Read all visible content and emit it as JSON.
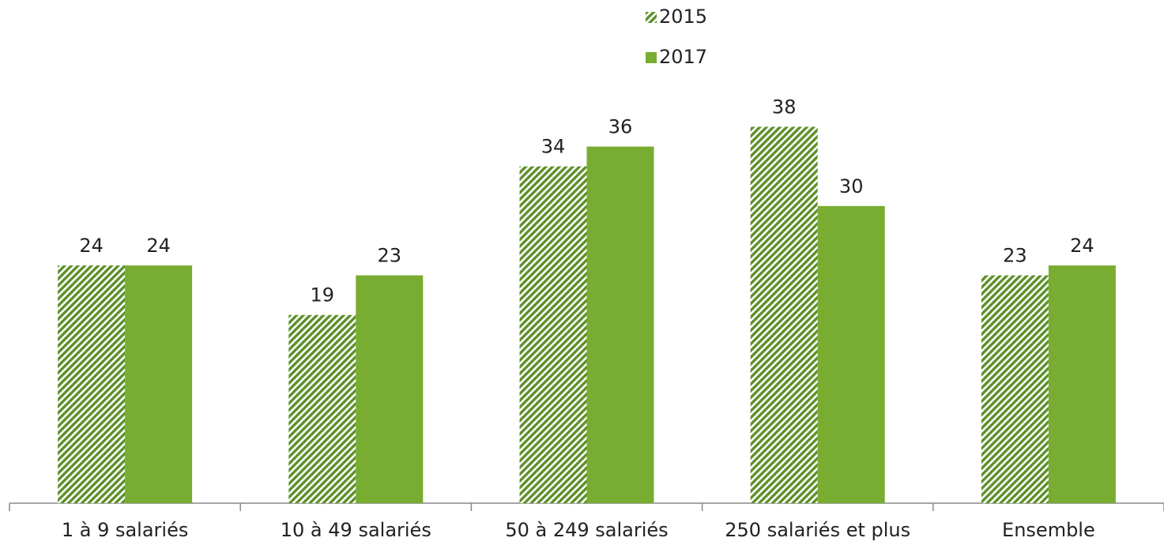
{
  "chart_data": {
    "type": "bar",
    "categories": [
      "1 à 9 salariés",
      "10 à 49 salariés",
      "50 à 249 salariés",
      "250 salariés et plus",
      "Ensemble"
    ],
    "series": [
      {
        "name": "2015",
        "color": "#5e8f2a",
        "pattern": "hatch",
        "values": [
          24,
          19,
          34,
          38,
          23
        ]
      },
      {
        "name": "2017",
        "color": "#78ad31",
        "values": [
          24,
          23,
          36,
          30,
          24
        ]
      }
    ]
  }
}
